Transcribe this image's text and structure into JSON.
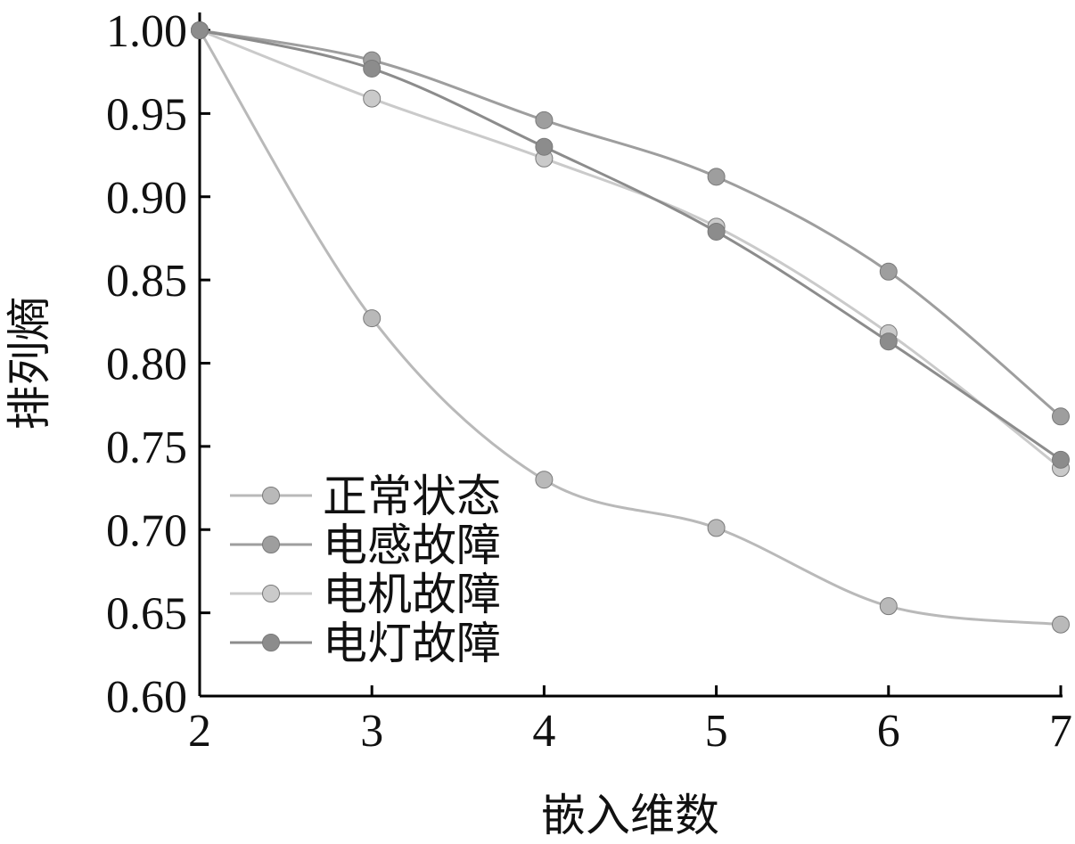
{
  "chart_data": {
    "type": "line",
    "title": "",
    "xlabel": "嵌入维数",
    "ylabel": "排列熵",
    "x": [
      2,
      3,
      4,
      5,
      6,
      7
    ],
    "xlim": [
      2,
      7
    ],
    "ylim": [
      0.6,
      1.0
    ],
    "x_ticks": [
      "2",
      "3",
      "4",
      "5",
      "6",
      "7"
    ],
    "y_ticks": [
      "0.60",
      "0.65",
      "0.70",
      "0.75",
      "0.80",
      "0.85",
      "0.90",
      "0.95",
      "1.00"
    ],
    "grid": false,
    "legend_position": "bottom-left",
    "smooth": true,
    "series": [
      {
        "name": "正常状态",
        "color": "#b9b9b9",
        "values": [
          1.0,
          0.827,
          0.73,
          0.701,
          0.654,
          0.643
        ]
      },
      {
        "name": "电感故障",
        "color": "#9e9e9e",
        "values": [
          1.0,
          0.982,
          0.946,
          0.912,
          0.855,
          0.768
        ]
      },
      {
        "name": "电机故障",
        "color": "#cacaca",
        "values": [
          1.0,
          0.959,
          0.923,
          0.882,
          0.818,
          0.737
        ]
      },
      {
        "name": "电灯故障",
        "color": "#8c8c8c",
        "values": [
          1.0,
          0.977,
          0.93,
          0.879,
          0.813,
          0.742
        ]
      }
    ]
  }
}
